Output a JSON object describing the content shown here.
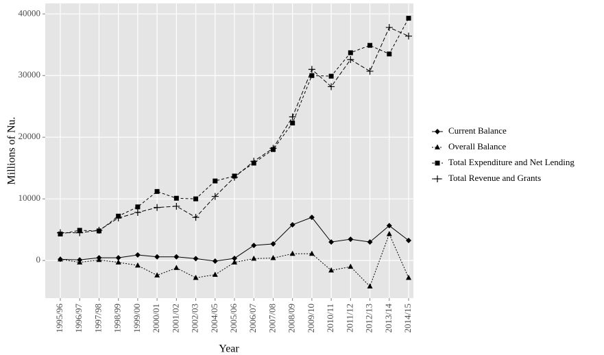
{
  "chart_data": {
    "type": "line",
    "x_label": "Year",
    "y_label": "Millions of Nu.",
    "categories": [
      "1995/96",
      "1996/97",
      "1997/98",
      "1998/99",
      "1999/00",
      "2000/01",
      "2001/02",
      "2002/03",
      "2004/05",
      "2005/06",
      "2006/07",
      "2007/08",
      "2008/09",
      "2009/10",
      "2010/11",
      "2011/12",
      "2012/13",
      "2013/14",
      "2014/15"
    ],
    "ylim": [
      -6100,
      41700
    ],
    "yticks": [
      0,
      10000,
      20000,
      30000,
      40000
    ],
    "grid": true,
    "legend_position": "right",
    "series": [
      {
        "name": "Current Balance",
        "color": "#000000",
        "marker": "diamond",
        "linestyle": "solid",
        "values": [
          200,
          100,
          450,
          450,
          900,
          600,
          600,
          300,
          -100,
          350,
          2450,
          2700,
          5800,
          7000,
          3000,
          3450,
          3000,
          5650,
          3250
        ]
      },
      {
        "name": "Overall Balance",
        "color": "#000000",
        "marker": "triangle",
        "linestyle": "dotted",
        "values": [
          200,
          -300,
          100,
          -300,
          -800,
          -2400,
          -1200,
          -2800,
          -2300,
          -300,
          300,
          400,
          1100,
          1100,
          -1600,
          -1000,
          -4200,
          4300,
          -2800
        ]
      },
      {
        "name": "Total Expenditure and Net Lending",
        "color": "#000000",
        "marker": "square",
        "linestyle": "dashed",
        "values": [
          4300,
          4900,
          4800,
          7200,
          8700,
          11200,
          10100,
          10000,
          12900,
          13700,
          15800,
          18000,
          22300,
          30000,
          29900,
          33700,
          34900,
          33500,
          39300
        ]
      },
      {
        "name": "Total Revenue and Grants",
        "color": "#000000",
        "marker": "plus",
        "linestyle": "longdash",
        "values": [
          4500,
          4500,
          4900,
          6900,
          7800,
          8600,
          8800,
          7000,
          10400,
          13500,
          16100,
          18200,
          23300,
          31000,
          28200,
          32600,
          30700,
          37800,
          36400
        ]
      }
    ]
  }
}
